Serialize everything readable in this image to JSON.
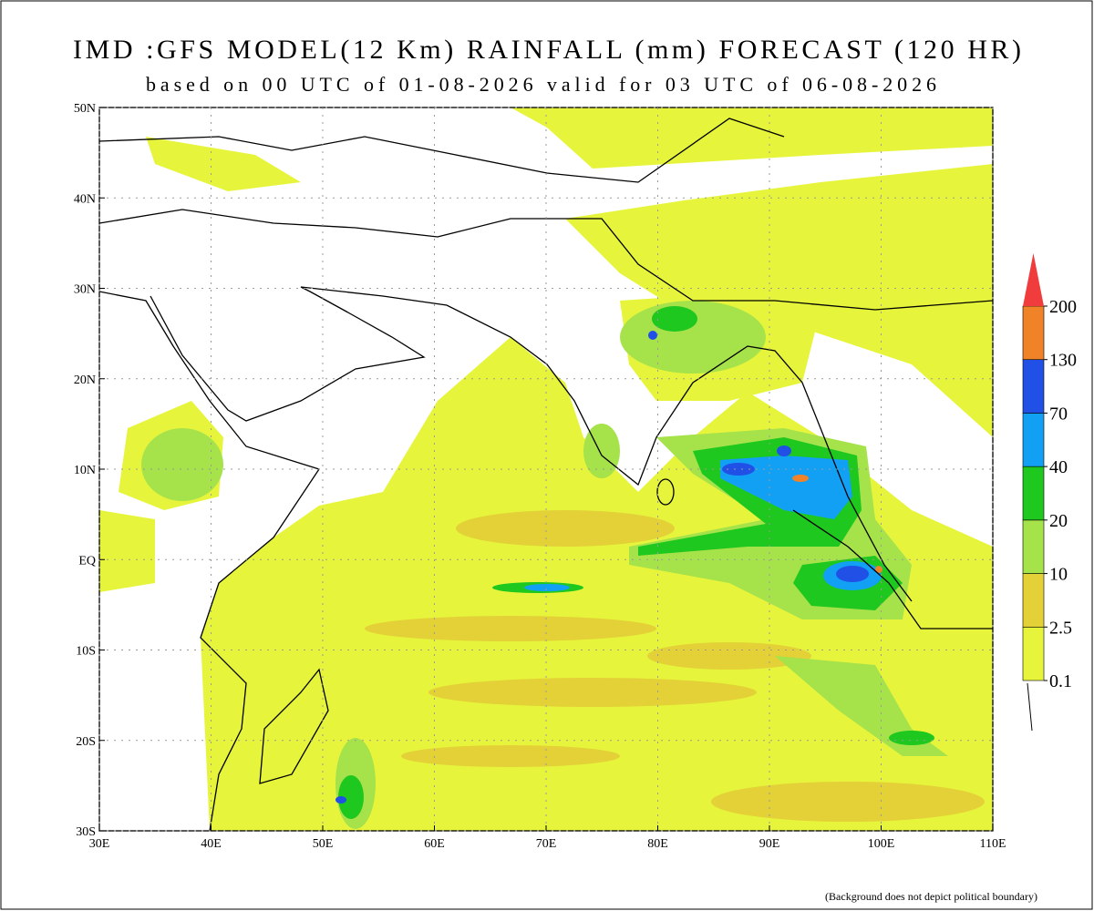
{
  "header": {
    "title": "IMD :GFS MODEL(12 Km) RAINFALL (mm) FORECAST (120 HR)",
    "subtitle": "based on 00 UTC of 01-08-2026 valid for 03 UTC of 06-08-2026"
  },
  "map": {
    "xlim": [
      30,
      110
    ],
    "ylim": [
      -30,
      50
    ],
    "xticks": [
      {
        "value": 30,
        "label": "30E"
      },
      {
        "value": 40,
        "label": "40E"
      },
      {
        "value": 50,
        "label": "50E"
      },
      {
        "value": 60,
        "label": "60E"
      },
      {
        "value": 70,
        "label": "70E"
      },
      {
        "value": 80,
        "label": "80E"
      },
      {
        "value": 90,
        "label": "90E"
      },
      {
        "value": 100,
        "label": "100E"
      },
      {
        "value": 110,
        "label": "110E"
      }
    ],
    "yticks": [
      {
        "value": -30,
        "label": "30S"
      },
      {
        "value": -20,
        "label": "20S"
      },
      {
        "value": -10,
        "label": "10S"
      },
      {
        "value": 0,
        "label": "EQ"
      },
      {
        "value": 10,
        "label": "10N"
      },
      {
        "value": 20,
        "label": "20N"
      },
      {
        "value": 30,
        "label": "30N"
      },
      {
        "value": 40,
        "label": "40N"
      },
      {
        "value": 50,
        "label": "50N"
      }
    ],
    "grid": true
  },
  "legend": {
    "levels": [
      0.1,
      2.5,
      10,
      20,
      40,
      70,
      130,
      200
    ],
    "colors": [
      "#e6f53c",
      "#e3d137",
      "#a6e24a",
      "#1ec81e",
      "#12a0f5",
      "#2050e6",
      "#f08228",
      "#f03c3c"
    ]
  },
  "footnote": "(Background does not depict political boundary)"
}
